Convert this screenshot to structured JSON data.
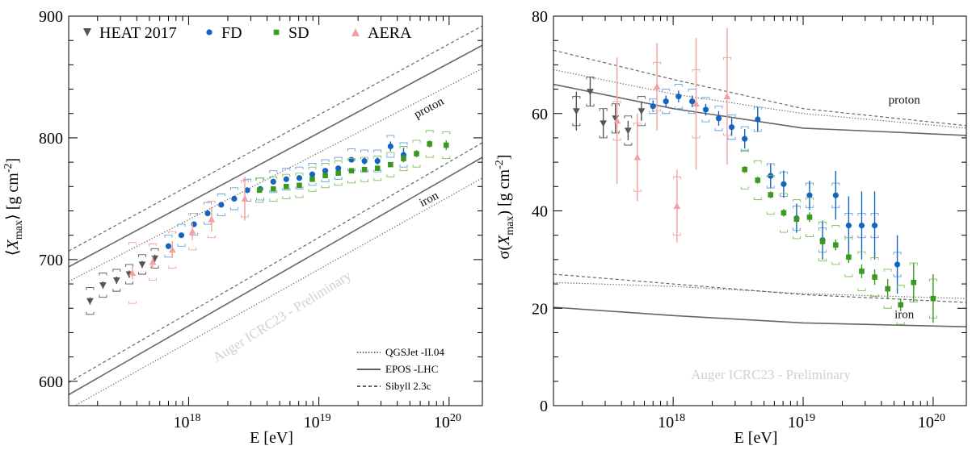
{
  "figure": {
    "watermark": "Auger ICRC23 - Preliminary"
  },
  "colors": {
    "heat": "#555555",
    "fd": "#1565c0",
    "fd_sys": "#64a0dc",
    "sd": "#3a9a1e",
    "sd_sys": "#7cc060",
    "aera": "#f4a0a0",
    "model": "#666666",
    "watermark": "#d0d0d0"
  },
  "chart_data": [
    {
      "type": "scatter",
      "id": "mean-xmax",
      "xlabel": "E [eV]",
      "ylabel": "⟨X_max⟩ [g cm^-2]",
      "xscale": "log",
      "xlim": [
        1.2e+17,
        1.8e+20
      ],
      "ylim": [
        580,
        900
      ],
      "yticks": [
        600,
        700,
        800,
        900
      ],
      "xticks": [
        {
          "v": 1e+18,
          "base": "10",
          "exp": "18"
        },
        {
          "v": 1e+19,
          "base": "10",
          "exp": "19"
        },
        {
          "v": 1e+20,
          "base": "10",
          "exp": "20"
        }
      ],
      "legend": {
        "placement": "top",
        "entries": [
          {
            "marker": "tri-down",
            "color": "heat",
            "label": "HEAT 2017"
          },
          {
            "marker": "circle",
            "color": "fd",
            "label": "FD"
          },
          {
            "marker": "square",
            "color": "sd",
            "label": "SD"
          },
          {
            "marker": "tri-up",
            "color": "aera",
            "label": "AERA"
          }
        ]
      },
      "model_legend": {
        "placement": "bottom-right",
        "entries": [
          {
            "dash": "dotted",
            "label": "QGSJet -II.04"
          },
          {
            "dash": "solid",
            "label": "EPOS -LHC"
          },
          {
            "dash": "dashed",
            "label": "Sibyll 2.3c"
          }
        ]
      },
      "annotations": [
        {
          "text": "proton",
          "x": 7.2e+19,
          "y": 822,
          "rotate": -28
        },
        {
          "text": "iron",
          "x": 7.2e+19,
          "y": 747,
          "rotate": -28
        }
      ],
      "models": [
        {
          "name": "EPOS -LHC",
          "dash": "solid",
          "line": [
            [
              1.2e+17,
              694
            ],
            [
              1.8e+20,
              876
            ]
          ]
        },
        {
          "name": "Sibyll 2.3c",
          "dash": "dashed",
          "line": [
            [
              1.2e+17,
              707
            ],
            [
              1.8e+20,
              892
            ]
          ]
        },
        {
          "name": "QGSJet -II.04",
          "dash": "dotted",
          "line": [
            [
              1.2e+17,
              682
            ],
            [
              1.8e+20,
              857
            ]
          ]
        },
        {
          "name": "EPOS -LHC",
          "dash": "solid",
          "line": [
            [
              1.2e+17,
              589
            ],
            [
              1.8e+20,
              784
            ]
          ]
        },
        {
          "name": "Sibyll 2.3c",
          "dash": "dashed",
          "line": [
            [
              1.2e+17,
              599
            ],
            [
              1.8e+20,
              796
            ]
          ]
        },
        {
          "name": "QGSJet -II.04",
          "dash": "dotted",
          "line": [
            [
              1.2e+17,
              577
            ],
            [
              1.8e+20,
              767
            ]
          ]
        }
      ],
      "series": [
        {
          "name": "HEAT 2017",
          "marker": "tri-down",
          "color": "heat",
          "x": [
            1.75e+17,
            2.2e+17,
            2.8e+17,
            3.5e+17,
            4.4e+17,
            5.5e+17
          ],
          "y": [
            666,
            679,
            683,
            688,
            696,
            701
          ],
          "sys": [
            11,
            10,
            9,
            8,
            8,
            8
          ],
          "err": [
            3,
            3,
            3,
            3,
            3,
            3
          ]
        },
        {
          "name": "FD",
          "marker": "circle",
          "color": "fd",
          "x": [
            7e+17,
            8.8e+17,
            1.1e+18,
            1.4e+18,
            1.78e+18,
            2.24e+18,
            2.82e+18,
            3.55e+18,
            4.47e+18,
            5.62e+18,
            7.08e+18,
            8.9e+18,
            1.12e+19,
            1.41e+19,
            1.78e+19,
            2.24e+19,
            2.82e+19,
            3.55e+19,
            4.47e+19
          ],
          "y": [
            711,
            720,
            729,
            738,
            745,
            750,
            757,
            758,
            764,
            766,
            767,
            770,
            773,
            775,
            782,
            781,
            781,
            793,
            786
          ],
          "sys": [
            9,
            9,
            9,
            9,
            9,
            9,
            9,
            9,
            9,
            9,
            9,
            9,
            9,
            9,
            9,
            9,
            9,
            9,
            10
          ],
          "err": [
            1,
            1,
            1,
            1,
            1,
            1,
            1,
            1,
            1,
            1,
            1,
            1,
            2,
            2,
            2,
            3,
            3,
            4,
            6
          ]
        },
        {
          "name": "SD",
          "marker": "square",
          "color": "sd",
          "x": [
            3.5e+18,
            4.47e+18,
            5.62e+18,
            7.08e+18,
            8.9e+18,
            1.12e+19,
            1.41e+19,
            1.78e+19,
            2.24e+19,
            2.82e+19,
            3.55e+19,
            4.47e+19,
            5.62e+19,
            7.08e+19,
            9.5e+19
          ],
          "y": [
            757,
            758,
            760,
            761,
            766,
            769,
            771,
            773,
            774,
            775,
            778,
            783,
            787,
            795,
            794
          ],
          "sys": [
            10,
            10,
            10,
            10,
            10,
            10,
            10,
            10,
            10,
            10,
            10,
            10,
            11,
            11,
            11
          ],
          "err": [
            1,
            1,
            1,
            1,
            1,
            1,
            1,
            1,
            1,
            2,
            2,
            3,
            3,
            3,
            4
          ]
        },
        {
          "name": "AERA",
          "marker": "tri-up",
          "color": "aera",
          "x": [
            3.7e+17,
            5.3e+17,
            7.5e+17,
            1.07e+18,
            1.5e+18,
            2.7e+18
          ],
          "y": [
            689,
            698,
            708,
            723,
            733,
            750
          ],
          "sys": [
            25,
            15,
            15,
            15,
            15,
            15
          ],
          "err": [
            5,
            5,
            7,
            7,
            10,
            18
          ]
        }
      ]
    },
    {
      "type": "scatter",
      "id": "sigma-xmax",
      "xlabel": "E [eV]",
      "ylabel": "σ(X_max) [g cm^-2]",
      "xscale": "log",
      "xlim": [
        1.2e+17,
        1.8e+20
      ],
      "ylim": [
        0,
        80
      ],
      "yticks": [
        0,
        20,
        40,
        60,
        80
      ],
      "xticks": [
        {
          "v": 1e+18,
          "base": "10",
          "exp": "18"
        },
        {
          "v": 1e+19,
          "base": "10",
          "exp": "19"
        },
        {
          "v": 1e+20,
          "base": "10",
          "exp": "20"
        }
      ],
      "annotations": [
        {
          "text": "proton",
          "x": 6e+19,
          "y": 62,
          "rotate": 0
        },
        {
          "text": "iron",
          "x": 6e+19,
          "y": 18,
          "rotate": 0
        }
      ],
      "models": [
        {
          "name": "EPOS -LHC",
          "dash": "solid",
          "line": [
            [
              1.2e+17,
              66
            ],
            [
              1e+18,
              61
            ],
            [
              1e+19,
              57
            ],
            [
              1.8e+20,
              55.5
            ]
          ]
        },
        {
          "name": "Sibyll 2.3c",
          "dash": "dashed",
          "line": [
            [
              1.2e+17,
              73
            ],
            [
              1e+18,
              67
            ],
            [
              1e+19,
              61
            ],
            [
              1.8e+20,
              57.5
            ]
          ]
        },
        {
          "name": "QGSJet -II.04",
          "dash": "dotted",
          "line": [
            [
              1.2e+17,
              69
            ],
            [
              1e+18,
              64
            ],
            [
              1e+19,
              60
            ],
            [
              1.8e+20,
              57
            ]
          ]
        },
        {
          "name": "EPOS -LHC",
          "dash": "solid",
          "line": [
            [
              1.2e+17,
              20.2
            ],
            [
              1e+18,
              18.5
            ],
            [
              1e+19,
              17
            ],
            [
              1.8e+20,
              16.2
            ]
          ]
        },
        {
          "name": "Sibyll 2.3c",
          "dash": "dashed",
          "line": [
            [
              1.2e+17,
              27
            ],
            [
              1e+18,
              25
            ],
            [
              1e+19,
              22.8
            ],
            [
              1.8e+20,
              21.2
            ]
          ]
        },
        {
          "name": "QGSJet -II.04",
          "dash": "dotted",
          "line": [
            [
              1.2e+17,
              25.3
            ],
            [
              1e+18,
              24.5
            ],
            [
              1e+19,
              23
            ],
            [
              1.8e+20,
              22
            ]
          ]
        }
      ],
      "series": [
        {
          "name": "HEAT 2017",
          "marker": "tri-down",
          "color": "heat",
          "x": [
            1.8e+17,
            2.3e+17,
            2.9e+17,
            3.6e+17,
            4.5e+17,
            5.7e+17
          ],
          "y": [
            60.5,
            64.5,
            58,
            59,
            56.5,
            60.5
          ],
          "sys": [
            3,
            3,
            3,
            3,
            3,
            3
          ],
          "err": [
            4,
            3,
            3,
            3,
            2,
            2
          ]
        },
        {
          "name": "FD",
          "marker": "circle",
          "color": "fd",
          "x": [
            7e+17,
            8.8e+17,
            1.1e+18,
            1.4e+18,
            1.78e+18,
            2.24e+18,
            2.82e+18,
            3.55e+18,
            4.47e+18,
            5.62e+18,
            7.08e+18,
            8.9e+18,
            1.12e+19,
            1.41e+19,
            1.78e+19,
            2.24e+19,
            2.82e+19,
            3.55e+19,
            5.3e+19
          ],
          "y": [
            61.5,
            62.5,
            63.5,
            62.5,
            60.8,
            59,
            57.2,
            54.8,
            58.8,
            47.2,
            45.5,
            38.5,
            43.2,
            34,
            43.2,
            37,
            37,
            37,
            29
          ],
          "sys": [
            1.5,
            2.5,
            2.5,
            2.5,
            2.5,
            2.5,
            2.5,
            2.5,
            2.5,
            2.5,
            2.5,
            2.5,
            2.5,
            2.5,
            2.5,
            2.5,
            2.5,
            2.5,
            2.5
          ],
          "err": [
            1.2,
            1.2,
            1.2,
            1.2,
            1.2,
            1.5,
            1.8,
            2,
            2.5,
            2.5,
            2.8,
            3,
            3,
            4,
            5,
            6,
            7,
            7,
            6
          ]
        },
        {
          "name": "SD",
          "marker": "square",
          "color": "sd",
          "x": [
            3.55e+18,
            4.47e+18,
            5.62e+18,
            7.08e+18,
            8.9e+18,
            1.12e+19,
            1.41e+19,
            1.78e+19,
            2.24e+19,
            2.82e+19,
            3.55e+19,
            4.47e+19,
            5.62e+19,
            7.08e+19,
            1e+20
          ],
          "y": [
            48.5,
            46.3,
            43.3,
            39.6,
            38.3,
            38.7,
            33.7,
            33,
            30.5,
            27.6,
            26.4,
            24,
            20.7,
            25.3,
            22
          ],
          "sys": [
            4,
            4,
            4,
            4,
            4,
            4,
            4,
            4,
            4,
            4,
            4,
            4,
            4,
            4,
            4
          ],
          "err": [
            0.7,
            0.7,
            0.7,
            0.8,
            0.8,
            1,
            1,
            1.1,
            1.2,
            1.4,
            1.6,
            2,
            1.3,
            4,
            5
          ]
        },
        {
          "name": "AERA",
          "marker": "tri-up",
          "color": "aera",
          "x": [
            3.7e+17,
            5.3e+17,
            7.5e+17,
            1.07e+18,
            1.5e+18,
            2.6e+18
          ],
          "y": [
            58.5,
            51,
            65.5,
            41,
            62,
            63.5
          ],
          "sys": [
            4,
            7,
            5,
            6,
            7,
            8
          ],
          "err": [
            13,
            9,
            9,
            7.5,
            13.5,
            14
          ]
        }
      ]
    }
  ]
}
